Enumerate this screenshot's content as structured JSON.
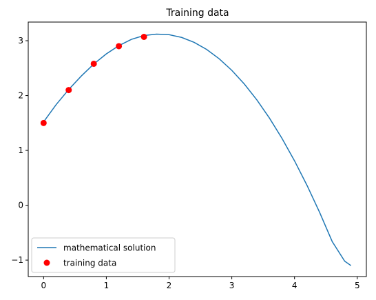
{
  "chart_data": {
    "type": "line",
    "title": "Training data",
    "xlabel": "",
    "ylabel": "",
    "xlim": [
      -0.245,
      5.145
    ],
    "ylim": [
      -1.3,
      3.34
    ],
    "xticks": [
      0,
      1,
      2,
      3,
      4,
      5
    ],
    "yticks": [
      -1,
      0,
      1,
      2,
      3
    ],
    "ytick_labels": [
      "−1",
      "0",
      "1",
      "2",
      "3"
    ],
    "grid": false,
    "legend_position": "lower-left",
    "series": [
      {
        "name": "mathematical solution",
        "kind": "line",
        "color": "#1f77b4",
        "x": [
          0,
          0.2,
          0.4,
          0.6,
          0.8,
          1.0,
          1.2,
          1.4,
          1.6,
          1.8,
          2.0,
          2.2,
          2.4,
          2.6,
          2.8,
          3.0,
          3.2,
          3.4,
          3.6,
          3.8,
          4.0,
          4.2,
          4.4,
          4.6,
          4.8,
          4.9
        ],
        "y": [
          1.52,
          1.835,
          2.11,
          2.355,
          2.575,
          2.76,
          2.91,
          3.025,
          3.095,
          3.12,
          3.11,
          3.06,
          2.97,
          2.84,
          2.67,
          2.46,
          2.21,
          1.92,
          1.59,
          1.22,
          0.81,
          0.36,
          -0.13,
          -0.66,
          -1.02,
          -1.1
        ]
      },
      {
        "name": "training data",
        "kind": "scatter",
        "color": "#ff0000",
        "x": [
          0,
          0.4,
          0.8,
          1.2,
          1.6
        ],
        "y": [
          1.5,
          2.1,
          2.58,
          2.9,
          3.07
        ]
      }
    ]
  }
}
